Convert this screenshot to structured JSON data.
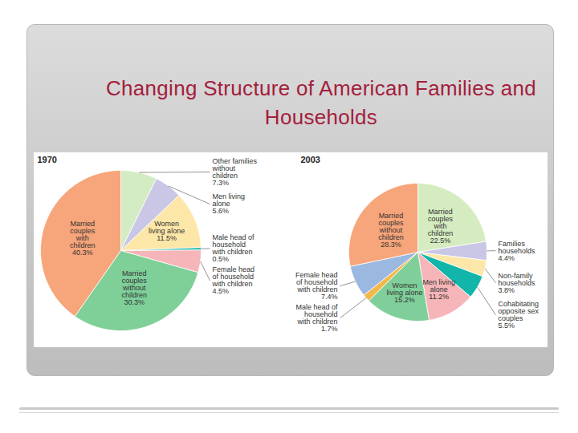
{
  "title": "Changing Structure of American Families and Households",
  "chart_data": [
    {
      "type": "pie",
      "title": "1970",
      "data_labels": true,
      "categories": [
        "Other families without children",
        "Men living alone",
        "Women living alone",
        "Male head of household with children",
        "Female head of household with children",
        "Married couples without children",
        "Married couples with children"
      ],
      "values": [
        7.3,
        5.6,
        11.5,
        0.5,
        4.5,
        30.3,
        40.3
      ],
      "value_labels": [
        "7.3%",
        "5.6%",
        "11.5%",
        "0.5%",
        "4.5%",
        "30.3%",
        "40.3%"
      ],
      "colors": [
        "#d4ecc4",
        "#c9c6e6",
        "#fde7a8",
        "#10b5a8",
        "#f6b5b8",
        "#7fcf99",
        "#f7a57a"
      ]
    },
    {
      "type": "pie",
      "title": "2003",
      "data_labels": true,
      "categories": [
        "Married couples with children",
        "Families households",
        "Non-family households",
        "Cohabitating opposite sex couples",
        "Men living alone",
        "Women living alone",
        "Male head of household with children",
        "Female head of household with children",
        "Married couples without children"
      ],
      "values": [
        22.5,
        4.4,
        3.8,
        5.5,
        11.2,
        15.2,
        1.7,
        7.4,
        28.3
      ],
      "value_labels": [
        "22.5%",
        "4.4%",
        "3.8%",
        "5.5%",
        "11.2%",
        "15.2%",
        "1.7%",
        "7.4%",
        "28.3%"
      ],
      "colors": [
        "#d5ecc0",
        "#c9c6e6",
        "#fde7a8",
        "#12b5a9",
        "#f6b5b8",
        "#80cf9a",
        "#f2b84a",
        "#9ab8e0",
        "#f7a57a"
      ]
    }
  ]
}
